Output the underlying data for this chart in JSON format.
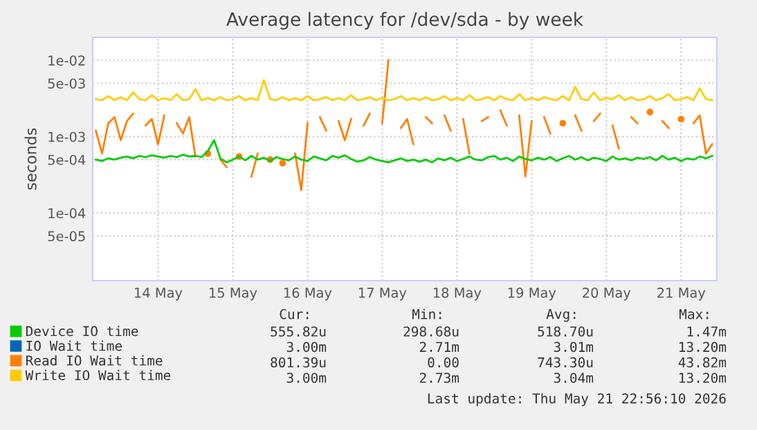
{
  "chart_data": {
    "type": "line",
    "title": "Average latency for /dev/sda - by week",
    "ylabel": "seconds",
    "log": "y",
    "ylim": [
      1.3e-05,
      0.02
    ],
    "yticks": [
      {
        "value": 5e-05,
        "label": "5e-05"
      },
      {
        "value": 0.0001,
        "label": "1e-04"
      },
      {
        "value": 0.0005,
        "label": "5e-04"
      },
      {
        "value": 0.001,
        "label": "1e-03"
      },
      {
        "value": 0.005,
        "label": "5e-03"
      },
      {
        "value": 0.01,
        "label": "1e-02"
      }
    ],
    "xlim": [
      "2026-05-13T15:00",
      "2026-05-21T23:30"
    ],
    "xticks": [
      {
        "value": "2026-05-14T12:00",
        "label": "14 May"
      },
      {
        "value": "2026-05-15T12:00",
        "label": "15 May"
      },
      {
        "value": "2026-05-16T12:00",
        "label": "16 May"
      },
      {
        "value": "2026-05-17T12:00",
        "label": "17 May"
      },
      {
        "value": "2026-05-18T12:00",
        "label": "18 May"
      },
      {
        "value": "2026-05-19T12:00",
        "label": "19 May"
      },
      {
        "value": "2026-05-20T12:00",
        "label": "20 May"
      },
      {
        "value": "2026-05-21T12:00",
        "label": "21 May"
      }
    ],
    "grid": true,
    "legend": "bottom",
    "marker": "none",
    "line_style": "solid",
    "x": [
      "2026-05-13T16:00",
      "2026-05-13T18:00",
      "2026-05-13T20:00",
      "2026-05-13T22:00",
      "2026-05-14T00:00",
      "2026-05-14T02:00",
      "2026-05-14T04:00",
      "2026-05-14T06:00",
      "2026-05-14T08:00",
      "2026-05-14T10:00",
      "2026-05-14T12:00",
      "2026-05-14T14:00",
      "2026-05-14T16:00",
      "2026-05-14T18:00",
      "2026-05-14T20:00",
      "2026-05-14T22:00",
      "2026-05-15T00:00",
      "2026-05-15T02:00",
      "2026-05-15T04:00",
      "2026-05-15T06:00",
      "2026-05-15T08:00",
      "2026-05-15T10:00",
      "2026-05-15T12:00",
      "2026-05-15T14:00",
      "2026-05-15T16:00",
      "2026-05-15T18:00",
      "2026-05-15T20:00",
      "2026-05-15T22:00",
      "2026-05-16T00:00",
      "2026-05-16T02:00",
      "2026-05-16T04:00",
      "2026-05-16T06:00",
      "2026-05-16T08:00",
      "2026-05-16T10:00",
      "2026-05-16T12:00",
      "2026-05-16T14:00",
      "2026-05-16T16:00",
      "2026-05-16T18:00",
      "2026-05-16T20:00",
      "2026-05-16T22:00",
      "2026-05-17T00:00",
      "2026-05-17T02:00",
      "2026-05-17T04:00",
      "2026-05-17T06:00",
      "2026-05-17T08:00",
      "2026-05-17T10:00",
      "2026-05-17T12:00",
      "2026-05-17T14:00",
      "2026-05-17T16:00",
      "2026-05-17T18:00",
      "2026-05-17T20:00",
      "2026-05-17T22:00",
      "2026-05-18T00:00",
      "2026-05-18T02:00",
      "2026-05-18T04:00",
      "2026-05-18T06:00",
      "2026-05-18T08:00",
      "2026-05-18T10:00",
      "2026-05-18T12:00",
      "2026-05-18T14:00",
      "2026-05-18T16:00",
      "2026-05-18T18:00",
      "2026-05-18T20:00",
      "2026-05-18T22:00",
      "2026-05-19T00:00",
      "2026-05-19T02:00",
      "2026-05-19T04:00",
      "2026-05-19T06:00",
      "2026-05-19T08:00",
      "2026-05-19T10:00",
      "2026-05-19T12:00",
      "2026-05-19T14:00",
      "2026-05-19T16:00",
      "2026-05-19T18:00",
      "2026-05-19T20:00",
      "2026-05-19T22:00",
      "2026-05-20T00:00",
      "2026-05-20T02:00",
      "2026-05-20T04:00",
      "2026-05-20T06:00",
      "2026-05-20T08:00",
      "2026-05-20T10:00",
      "2026-05-20T12:00",
      "2026-05-20T14:00",
      "2026-05-20T16:00",
      "2026-05-20T18:00",
      "2026-05-20T20:00",
      "2026-05-20T22:00",
      "2026-05-21T00:00",
      "2026-05-21T02:00",
      "2026-05-21T04:00",
      "2026-05-21T06:00",
      "2026-05-21T08:00",
      "2026-05-21T10:00",
      "2026-05-21T12:00",
      "2026-05-21T14:00",
      "2026-05-21T16:00",
      "2026-05-21T18:00",
      "2026-05-21T20:00",
      "2026-05-21T22:00"
    ],
    "series": [
      {
        "name": "Device IO time",
        "color": "#00cc00",
        "values": [
          0.0005,
          0.00048,
          0.00052,
          0.0005,
          0.00053,
          0.00055,
          0.00052,
          0.00056,
          0.00054,
          0.00057,
          0.00055,
          0.00053,
          0.00056,
          0.00054,
          0.00058,
          0.00055,
          0.00056,
          0.00054,
          0.00065,
          0.0009,
          0.00052,
          0.00046,
          0.0005,
          0.00055,
          0.00049,
          0.00056,
          0.0005,
          0.00053,
          0.00048,
          0.00054,
          0.00051,
          0.00049,
          0.00055,
          0.0005,
          0.00048,
          0.00055,
          0.00052,
          0.00049,
          0.00056,
          0.00053,
          0.00057,
          0.00051,
          0.00047,
          0.00049,
          0.00054,
          0.0005,
          0.00048,
          0.00046,
          0.00049,
          0.00052,
          0.00048,
          0.0005,
          0.00047,
          0.0005,
          0.00046,
          0.00052,
          0.00049,
          0.00053,
          0.00048,
          0.00051,
          0.00055,
          0.0005,
          0.00049,
          0.00054,
          0.00056,
          0.0005,
          0.00053,
          0.00048,
          0.00055,
          0.00051,
          0.00049,
          0.00053,
          0.0005,
          0.00054,
          0.00048,
          0.00052,
          0.00056,
          0.0005,
          0.00054,
          0.00049,
          0.00053,
          0.00051,
          0.00048,
          0.00055,
          0.0005,
          0.00052,
          0.00049,
          0.00053,
          0.00051,
          0.00054,
          0.00049,
          0.00056,
          0.0005,
          0.00053,
          0.00048,
          0.00052,
          0.0005,
          0.00055,
          0.00052,
          0.00056
        ]
      },
      {
        "name": "IO Wait time",
        "color": "#0066b3",
        "values": [
          null,
          null,
          null,
          null,
          null,
          null,
          null,
          null,
          null,
          null,
          null,
          null,
          null,
          null,
          null,
          null,
          null,
          null,
          null,
          null,
          null,
          null,
          null,
          null,
          null,
          null,
          null,
          null,
          null,
          null,
          null,
          null,
          null,
          null,
          null,
          null,
          null,
          null,
          null,
          null,
          null,
          null,
          null,
          null,
          null,
          null,
          null,
          null,
          null,
          null,
          null,
          null,
          null,
          null,
          null,
          null,
          null,
          null,
          null,
          null,
          null,
          null,
          null,
          null,
          null,
          null,
          null,
          null,
          null,
          null,
          null,
          null,
          null,
          null,
          null,
          null,
          null,
          null,
          null,
          null,
          null,
          null,
          null,
          null,
          null,
          null,
          null,
          null,
          null,
          null,
          null,
          null,
          null,
          null,
          null,
          null,
          null,
          null,
          null,
          null
        ]
      },
      {
        "name": "Read IO Wait time",
        "color": "#ff8000",
        "values": [
          0.0012,
          0.0006,
          0.0015,
          0.0018,
          0.0009,
          0.0016,
          0.002,
          null,
          0.0014,
          0.0017,
          0.0008,
          0.0019,
          null,
          0.0015,
          0.0011,
          0.0018,
          0.00055,
          null,
          0.0006,
          null,
          0.0005,
          0.0004,
          null,
          0.00055,
          null,
          0.0003,
          0.0006,
          null,
          0.0005,
          null,
          0.00045,
          null,
          0.0006,
          0.0002,
          0.0015,
          null,
          0.0018,
          0.0012,
          null,
          0.0016,
          0.0009,
          0.0017,
          null,
          0.0014,
          0.002,
          null,
          0.0015,
          0.01,
          null,
          0.0013,
          0.0017,
          0.0008,
          null,
          0.0018,
          0.0015,
          null,
          0.0019,
          0.0012,
          null,
          0.0017,
          0.0006,
          null,
          0.0016,
          0.0018,
          null,
          0.0022,
          0.0014,
          null,
          0.0019,
          0.0003,
          0.0016,
          null,
          0.0018,
          0.0011,
          null,
          0.0015,
          null,
          0.0019,
          0.0012,
          null,
          0.0016,
          0.002,
          null,
          0.0014,
          0.0007,
          null,
          0.0018,
          0.0015,
          null,
          0.0021,
          null,
          0.0016,
          0.0013,
          null,
          0.0017,
          null,
          0.0015,
          0.0019,
          0.0006,
          0.0008
        ]
      },
      {
        "name": "Write IO Wait time",
        "color": "#ffcc00",
        "values": [
          0.0031,
          0.003,
          0.0034,
          0.003,
          0.0033,
          0.003,
          0.0038,
          0.0031,
          0.003,
          0.0035,
          0.003,
          0.0032,
          0.003,
          0.0036,
          0.003,
          0.0031,
          0.0042,
          0.003,
          0.0032,
          0.003,
          0.0033,
          0.003,
          0.0031,
          0.0034,
          0.003,
          0.0032,
          0.003,
          0.0055,
          0.0031,
          0.003,
          0.0033,
          0.003,
          0.0032,
          0.003,
          0.0034,
          0.003,
          0.0031,
          0.0033,
          0.003,
          0.0032,
          0.003,
          0.0035,
          0.003,
          0.0031,
          0.0033,
          0.003,
          0.0032,
          0.003,
          0.0031,
          0.0034,
          0.003,
          0.0032,
          0.003,
          0.0033,
          0.003,
          0.0031,
          0.0034,
          0.003,
          0.0032,
          0.003,
          0.0035,
          0.003,
          0.0031,
          0.0033,
          0.003,
          0.0034,
          0.0031,
          0.003,
          0.0036,
          0.003,
          0.0032,
          0.003,
          0.0033,
          0.0031,
          0.003,
          0.0034,
          0.003,
          0.0045,
          0.0031,
          0.003,
          0.0038,
          0.003,
          0.0032,
          0.0031,
          0.0035,
          0.003,
          0.0033,
          0.003,
          0.0031,
          0.0034,
          0.003,
          0.0032,
          0.0036,
          0.003,
          0.0031,
          0.0033,
          0.003,
          0.0043,
          0.0031,
          0.003
        ]
      }
    ],
    "annotations": [
      "Cur:",
      "Min:",
      "Avg:",
      "Max:",
      "555.82u",
      "298.68u",
      "518.70u",
      "1.47m",
      "3.00m",
      "2.71m",
      "3.01m",
      "13.20m",
      "801.39u",
      "0.00",
      "743.30u",
      "43.82m",
      "3.00m",
      "2.73m",
      "3.04m",
      "13.20m",
      "Last update: Thu May 21 22:56:10 2026"
    ]
  }
}
